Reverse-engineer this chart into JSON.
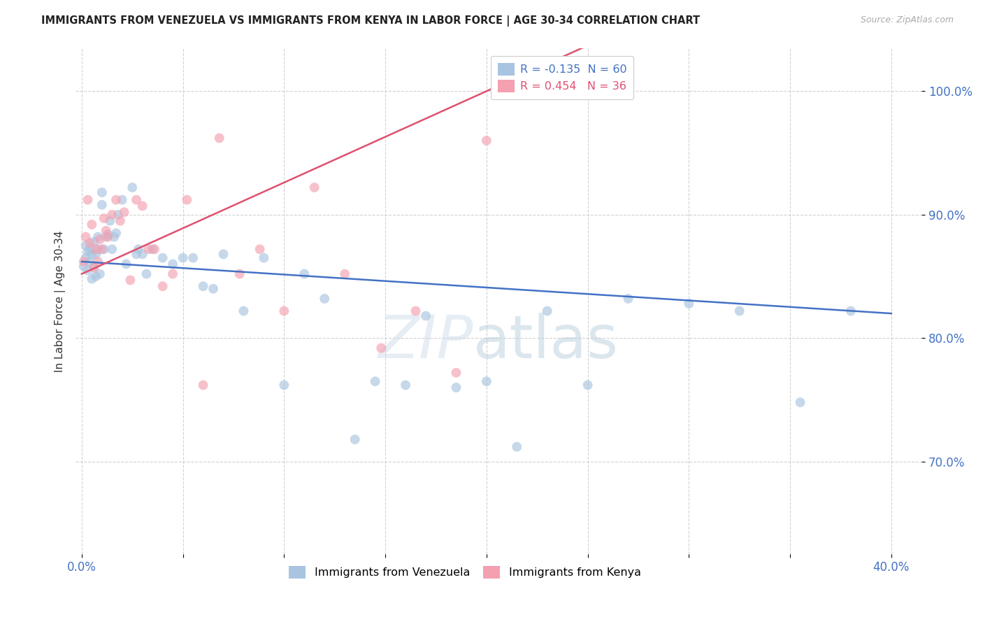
{
  "title": "IMMIGRANTS FROM VENEZUELA VS IMMIGRANTS FROM KENYA IN LABOR FORCE | AGE 30-34 CORRELATION CHART",
  "source": "Source: ZipAtlas.com",
  "ylabel": "In Labor Force | Age 30-34",
  "watermark": "ZIPatlas",
  "xlim": [
    -0.003,
    0.415
  ],
  "ylim": [
    0.625,
    1.035
  ],
  "xticks": [
    0.0,
    0.05,
    0.1,
    0.15,
    0.2,
    0.25,
    0.3,
    0.35,
    0.4
  ],
  "yticks": [
    0.7,
    0.8,
    0.9,
    1.0
  ],
  "ytick_labels": [
    "70.0%",
    "80.0%",
    "90.0%",
    "100.0%"
  ],
  "xtick_labels_visible": [
    "0.0%",
    "40.0%"
  ],
  "venezuela_R": -0.135,
  "venezuela_N": 60,
  "kenya_R": 0.454,
  "kenya_N": 36,
  "venezuela_x": [
    0.001,
    0.002,
    0.002,
    0.003,
    0.003,
    0.004,
    0.004,
    0.005,
    0.005,
    0.006,
    0.006,
    0.007,
    0.007,
    0.008,
    0.008,
    0.009,
    0.01,
    0.01,
    0.011,
    0.012,
    0.013,
    0.014,
    0.015,
    0.016,
    0.017,
    0.018,
    0.02,
    0.022,
    0.025,
    0.027,
    0.028,
    0.03,
    0.032,
    0.035,
    0.04,
    0.045,
    0.05,
    0.055,
    0.06,
    0.065,
    0.07,
    0.08,
    0.09,
    0.1,
    0.11,
    0.12,
    0.135,
    0.145,
    0.16,
    0.17,
    0.185,
    0.2,
    0.215,
    0.23,
    0.25,
    0.27,
    0.3,
    0.325,
    0.355,
    0.38
  ],
  "venezuela_y": [
    0.858,
    0.865,
    0.875,
    0.855,
    0.87,
    0.862,
    0.872,
    0.848,
    0.868,
    0.858,
    0.878,
    0.85,
    0.868,
    0.872,
    0.882,
    0.852,
    0.908,
    0.918,
    0.872,
    0.882,
    0.884,
    0.895,
    0.872,
    0.882,
    0.885,
    0.9,
    0.912,
    0.86,
    0.922,
    0.868,
    0.872,
    0.868,
    0.852,
    0.872,
    0.865,
    0.86,
    0.865,
    0.865,
    0.842,
    0.84,
    0.868,
    0.822,
    0.865,
    0.762,
    0.852,
    0.832,
    0.718,
    0.765,
    0.762,
    0.818,
    0.76,
    0.765,
    0.712,
    0.822,
    0.762,
    0.832,
    0.828,
    0.822,
    0.748,
    0.822
  ],
  "kenya_x": [
    0.001,
    0.002,
    0.003,
    0.004,
    0.005,
    0.006,
    0.007,
    0.008,
    0.009,
    0.01,
    0.011,
    0.012,
    0.013,
    0.015,
    0.017,
    0.019,
    0.021,
    0.024,
    0.027,
    0.03,
    0.033,
    0.036,
    0.04,
    0.045,
    0.052,
    0.06,
    0.068,
    0.078,
    0.088,
    0.1,
    0.115,
    0.13,
    0.148,
    0.165,
    0.185,
    0.2
  ],
  "kenya_y": [
    0.862,
    0.882,
    0.912,
    0.877,
    0.892,
    0.857,
    0.872,
    0.862,
    0.88,
    0.872,
    0.897,
    0.887,
    0.882,
    0.9,
    0.912,
    0.895,
    0.902,
    0.847,
    0.912,
    0.907,
    0.872,
    0.872,
    0.842,
    0.852,
    0.912,
    0.762,
    0.962,
    0.852,
    0.872,
    0.822,
    0.922,
    0.852,
    0.792,
    0.822,
    0.772,
    0.96
  ],
  "dot_color_venezuela": "#a8c4e0",
  "dot_color_kenya": "#f4a0b0",
  "line_color_venezuela": "#4472c4",
  "line_color_kenya": "#e05070",
  "dot_size": 100,
  "dot_alpha": 0.65,
  "line_width": 1.8
}
